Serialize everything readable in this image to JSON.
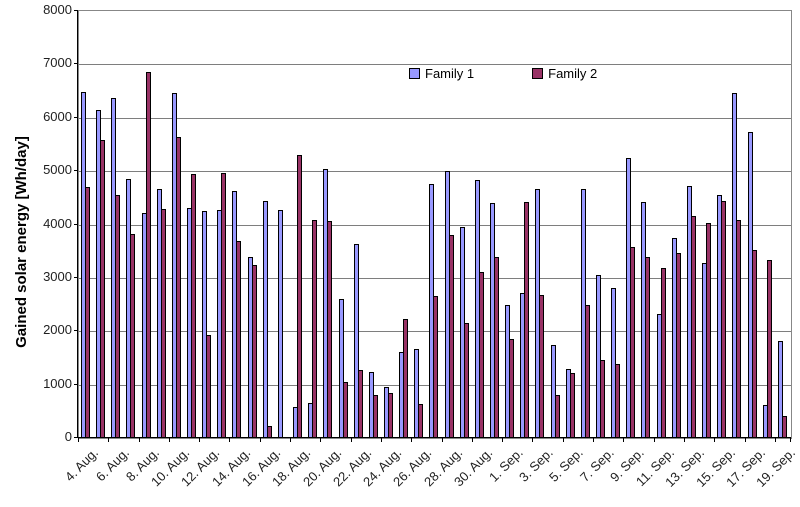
{
  "chart_data": {
    "type": "bar",
    "title": "",
    "ylabel": "Gained solar energy [Wh/day]",
    "xlabel": "",
    "ylim": [
      0,
      8000
    ],
    "ytick_step": 1000,
    "yticks": [
      0,
      1000,
      2000,
      3000,
      4000,
      5000,
      6000,
      7000,
      8000
    ],
    "grid": "horizontal",
    "legend_position": "top-center",
    "categories": [
      "4. Aug.",
      "5. Aug.",
      "6. Aug.",
      "7. Aug.",
      "8. Aug.",
      "9. Aug.",
      "10. Aug.",
      "11. Aug.",
      "12. Aug.",
      "13. Aug.",
      "14. Aug.",
      "15. Aug.",
      "16. Aug.",
      "17. Aug.",
      "18. Aug.",
      "19. Aug.",
      "20. Aug.",
      "21. Aug.",
      "22. Aug.",
      "23. Aug.",
      "24. Aug.",
      "25. Aug.",
      "26. Aug.",
      "27. Aug.",
      "28. Aug.",
      "29. Aug.",
      "30. Aug.",
      "31. Aug.",
      "1. Sep.",
      "2. Sep.",
      "3. Sep.",
      "4. Sep.",
      "5. Sep.",
      "6. Sep.",
      "7. Sep.",
      "8. Sep.",
      "9. Sep.",
      "10. Sep.",
      "11. Sep.",
      "12. Sep.",
      "13. Sep.",
      "14. Sep.",
      "15. Sep.",
      "16. Sep.",
      "17. Sep.",
      "18. Sep.",
      "19. Sep."
    ],
    "xaxis_label_interval": 2,
    "series": [
      {
        "name": "Family 1",
        "color": "#9999ff",
        "values": [
          6490,
          6150,
          6370,
          4850,
          4220,
          4660,
          6460,
          4300,
          4250,
          4270,
          4620,
          3400,
          4440,
          4270,
          580,
          660,
          5040,
          2610,
          3640,
          1240,
          950,
          1620,
          1660,
          4750,
          5000,
          3950,
          4830,
          4400,
          2500,
          2710,
          4670,
          1740,
          1290,
          4660,
          3060,
          2810,
          5240,
          4420,
          2330,
          3750,
          4720,
          3280,
          4560,
          6470,
          5730,
          620,
          1810
        ]
      },
      {
        "name": "Family 2",
        "color": "#993366",
        "values": [
          4700,
          5590,
          4550,
          3820,
          6850,
          4290,
          5640,
          4950,
          1930,
          4960,
          3690,
          3240,
          230,
          0,
          5300,
          4080,
          4070,
          1040,
          1270,
          800,
          840,
          2230,
          640,
          2660,
          3810,
          2160,
          3110,
          3400,
          1850,
          4420,
          2680,
          810,
          1220,
          2490,
          1460,
          1380,
          3580,
          3390,
          3190,
          3470,
          4150,
          4030,
          4440,
          4090,
          3530,
          3340,
          410
        ]
      }
    ]
  },
  "colors": {
    "gridline": "#7e7e7e",
    "axis": "#000000",
    "text": "#1f1f1f",
    "plot_border": "#878787",
    "background": "#ffffff"
  }
}
